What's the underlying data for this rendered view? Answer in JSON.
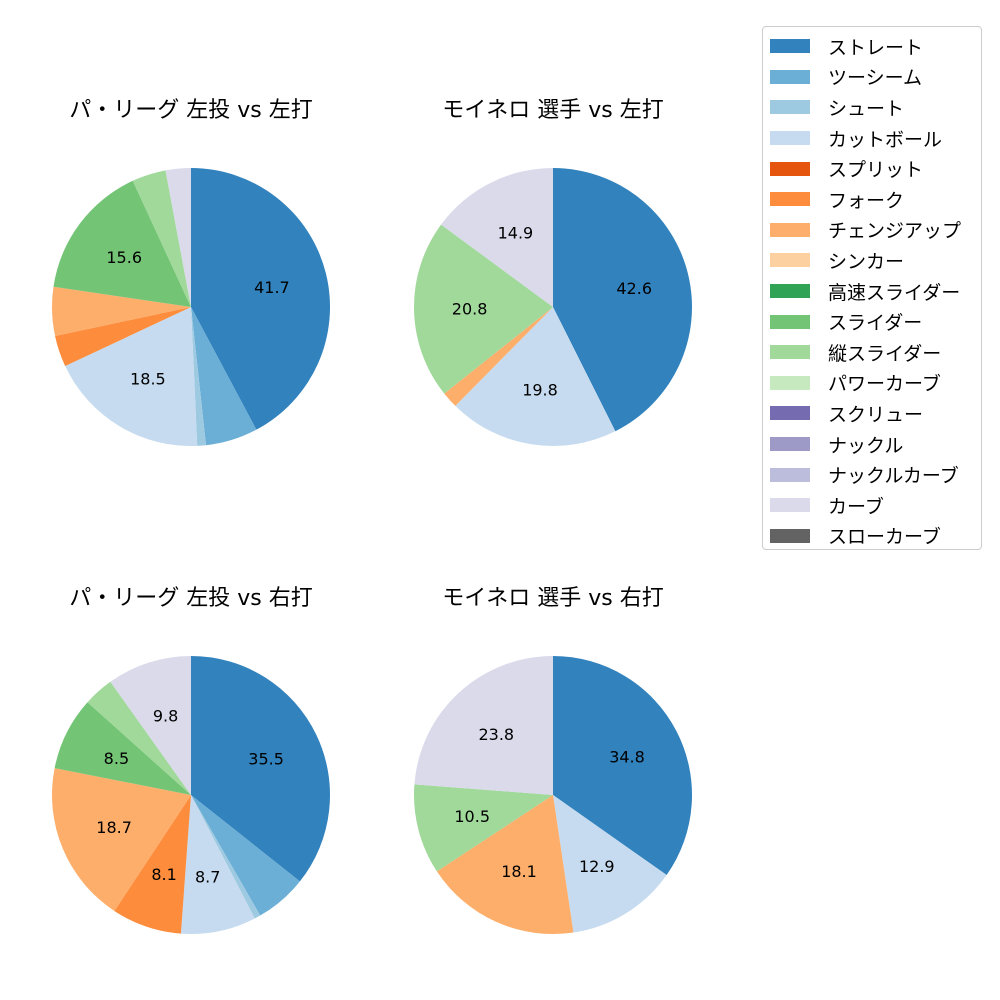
{
  "chart_data": {
    "type": "pie",
    "legend": {
      "placement": "top-right",
      "entries": [
        {
          "name": "ストレート",
          "color": "#3182bd"
        },
        {
          "name": "ツーシーム",
          "color": "#6baed6"
        },
        {
          "name": "シュート",
          "color": "#9ecae1"
        },
        {
          "name": "カットボール",
          "color": "#c6dbef"
        },
        {
          "name": "スプリット",
          "color": "#e6550d"
        },
        {
          "name": "フォーク",
          "color": "#fd8d3c"
        },
        {
          "name": "チェンジアップ",
          "color": "#fdae6b"
        },
        {
          "name": "シンカー",
          "color": "#fdd0a2"
        },
        {
          "name": "高速スライダー",
          "color": "#31a354"
        },
        {
          "name": "スライダー",
          "color": "#74c476"
        },
        {
          "name": "縦スライダー",
          "color": "#a1d99b"
        },
        {
          "name": "パワーカーブ",
          "color": "#c7e9c0"
        },
        {
          "name": "スクリュー",
          "color": "#756bb1"
        },
        {
          "name": "ナックル",
          "color": "#9e9ac8"
        },
        {
          "name": "ナックルカーブ",
          "color": "#bcbddc"
        },
        {
          "name": "カーブ",
          "color": "#dadaeb"
        },
        {
          "name": "スローカーブ",
          "color": "#636363"
        }
      ]
    },
    "charts": [
      {
        "title": "パ・リーグ 左投 vs 左打",
        "slices": [
          {
            "name": "ストレート",
            "value": 41.7,
            "label": "41.7"
          },
          {
            "name": "ツーシーム",
            "value": 6.0,
            "label": ""
          },
          {
            "name": "シュート",
            "value": 1.0,
            "label": ""
          },
          {
            "name": "カットボール",
            "value": 18.5,
            "label": "18.5"
          },
          {
            "name": "フォーク",
            "value": 3.6,
            "label": ""
          },
          {
            "name": "チェンジアップ",
            "value": 5.6,
            "label": ""
          },
          {
            "name": "スライダー",
            "value": 15.6,
            "label": "15.6"
          },
          {
            "name": "縦スライダー",
            "value": 3.9,
            "label": ""
          },
          {
            "name": "カーブ",
            "value": 2.9,
            "label": ""
          }
        ]
      },
      {
        "title": "モイネロ 選手 vs 左打",
        "slices": [
          {
            "name": "ストレート",
            "value": 42.6,
            "label": "42.6"
          },
          {
            "name": "カットボール",
            "value": 19.8,
            "label": "19.8"
          },
          {
            "name": "チェンジアップ",
            "value": 1.9,
            "label": ""
          },
          {
            "name": "縦スライダー",
            "value": 20.8,
            "label": "20.8"
          },
          {
            "name": "カーブ",
            "value": 14.9,
            "label": "14.9"
          }
        ]
      },
      {
        "title": "パ・リーグ 左投 vs 右打",
        "slices": [
          {
            "name": "ストレート",
            "value": 35.5,
            "label": "35.5"
          },
          {
            "name": "ツーシーム",
            "value": 6.0,
            "label": ""
          },
          {
            "name": "シュート",
            "value": 0.7,
            "label": ""
          },
          {
            "name": "カットボール",
            "value": 8.7,
            "label": "8.7"
          },
          {
            "name": "フォーク",
            "value": 8.1,
            "label": "8.1"
          },
          {
            "name": "チェンジアップ",
            "value": 18.7,
            "label": "18.7"
          },
          {
            "name": "スライダー",
            "value": 8.5,
            "label": "8.5"
          },
          {
            "name": "縦スライダー",
            "value": 3.5,
            "label": ""
          },
          {
            "name": "カーブ",
            "value": 9.8,
            "label": "9.8"
          }
        ]
      },
      {
        "title": "モイネロ 選手 vs 右打",
        "slices": [
          {
            "name": "ストレート",
            "value": 34.8,
            "label": "34.8"
          },
          {
            "name": "カットボール",
            "value": 12.9,
            "label": "12.9"
          },
          {
            "name": "チェンジアップ",
            "value": 18.1,
            "label": "18.1"
          },
          {
            "name": "縦スライダー",
            "value": 10.5,
            "label": "10.5"
          },
          {
            "name": "カーブ",
            "value": 23.8,
            "label": "23.8"
          }
        ]
      }
    ]
  }
}
